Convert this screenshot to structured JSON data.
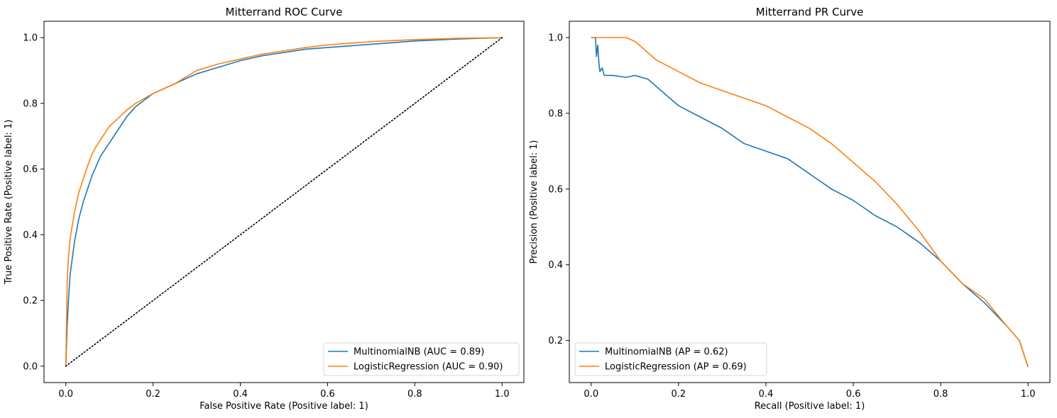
{
  "chart_data": [
    {
      "type": "line",
      "title": "Mitterrand ROC Curve",
      "xlabel": "False Positive Rate (Positive label: 1)",
      "ylabel": "True Positive Rate (Positive label: 1)",
      "xlim": [
        -0.05,
        1.05
      ],
      "ylim": [
        -0.05,
        1.05
      ],
      "xticks": [
        0.0,
        0.2,
        0.4,
        0.6,
        0.8,
        1.0
      ],
      "xtick_labels": [
        "0.0",
        "0.2",
        "0.4",
        "0.6",
        "0.8",
        "1.0"
      ],
      "yticks": [
        0.0,
        0.2,
        0.4,
        0.6,
        0.8,
        1.0
      ],
      "ytick_labels": [
        "0.0",
        "0.2",
        "0.4",
        "0.6",
        "0.8",
        "1.0"
      ],
      "legend_position": "lower-right",
      "grid": false,
      "series": [
        {
          "name": "MultinomialNB (AUC = 0.89)",
          "color": "#1f77b4",
          "x": [
            0.0,
            0.003,
            0.006,
            0.01,
            0.015,
            0.02,
            0.03,
            0.04,
            0.05,
            0.06,
            0.07,
            0.08,
            0.09,
            0.1,
            0.12,
            0.14,
            0.16,
            0.18,
            0.2,
            0.25,
            0.3,
            0.35,
            0.4,
            0.45,
            0.5,
            0.55,
            0.6,
            0.65,
            0.7,
            0.75,
            0.8,
            0.85,
            0.9,
            0.95,
            1.0
          ],
          "y": [
            0.0,
            0.12,
            0.2,
            0.28,
            0.33,
            0.38,
            0.45,
            0.5,
            0.54,
            0.58,
            0.61,
            0.64,
            0.66,
            0.68,
            0.72,
            0.76,
            0.79,
            0.81,
            0.83,
            0.86,
            0.89,
            0.91,
            0.93,
            0.945,
            0.955,
            0.965,
            0.97,
            0.975,
            0.98,
            0.985,
            0.99,
            0.993,
            0.996,
            0.998,
            1.0
          ]
        },
        {
          "name": "LogisticRegression (AUC = 0.90)",
          "color": "#ff7f0e",
          "x": [
            0.0,
            0.003,
            0.006,
            0.01,
            0.015,
            0.02,
            0.03,
            0.04,
            0.05,
            0.06,
            0.07,
            0.08,
            0.09,
            0.1,
            0.12,
            0.14,
            0.16,
            0.18,
            0.2,
            0.25,
            0.3,
            0.35,
            0.4,
            0.45,
            0.5,
            0.55,
            0.6,
            0.65,
            0.7,
            0.75,
            0.8,
            0.85,
            0.9,
            0.95,
            1.0
          ],
          "y": [
            0.0,
            0.25,
            0.33,
            0.39,
            0.43,
            0.47,
            0.53,
            0.57,
            0.61,
            0.645,
            0.67,
            0.69,
            0.71,
            0.73,
            0.755,
            0.78,
            0.8,
            0.815,
            0.83,
            0.86,
            0.9,
            0.92,
            0.935,
            0.95,
            0.96,
            0.97,
            0.978,
            0.983,
            0.988,
            0.991,
            0.994,
            0.996,
            0.998,
            0.999,
            1.0
          ]
        },
        {
          "name": "",
          "color": "#000000",
          "style": "dotted",
          "x": [
            0.0,
            1.0
          ],
          "y": [
            0.0,
            1.0
          ]
        }
      ]
    },
    {
      "type": "line",
      "title": "Mitterrand PR Curve",
      "xlabel": "Recall (Positive label: 1)",
      "ylabel": "Precision (Positive label: 1)",
      "xlim": [
        -0.05,
        1.05
      ],
      "ylim": [
        0.089,
        1.043
      ],
      "xticks": [
        0.0,
        0.2,
        0.4,
        0.6,
        0.8,
        1.0
      ],
      "xtick_labels": [
        "0.0",
        "0.2",
        "0.4",
        "0.6",
        "0.8",
        "1.0"
      ],
      "yticks": [
        0.2,
        0.4,
        0.6,
        0.8,
        1.0
      ],
      "ytick_labels": [
        "0.2",
        "0.4",
        "0.6",
        "0.8",
        "1.0"
      ],
      "legend_position": "lower-left",
      "grid": false,
      "series": [
        {
          "name": "MultinomialNB (AP = 0.62)",
          "color": "#1f77b4",
          "x": [
            0.0,
            0.01,
            0.012,
            0.015,
            0.018,
            0.02,
            0.025,
            0.03,
            0.05,
            0.08,
            0.1,
            0.13,
            0.15,
            0.2,
            0.25,
            0.3,
            0.35,
            0.4,
            0.45,
            0.5,
            0.55,
            0.6,
            0.65,
            0.7,
            0.75,
            0.8,
            0.85,
            0.9,
            0.95,
            0.98,
            1.0
          ],
          "y": [
            1.0,
            1.0,
            0.95,
            0.98,
            0.93,
            0.91,
            0.92,
            0.9,
            0.9,
            0.895,
            0.9,
            0.89,
            0.87,
            0.82,
            0.79,
            0.76,
            0.72,
            0.7,
            0.68,
            0.64,
            0.6,
            0.57,
            0.53,
            0.5,
            0.46,
            0.41,
            0.35,
            0.3,
            0.24,
            0.2,
            0.13
          ]
        },
        {
          "name": "LogisticRegression (AP = 0.69)",
          "color": "#ff7f0e",
          "x": [
            0.0,
            0.02,
            0.05,
            0.08,
            0.1,
            0.12,
            0.15,
            0.2,
            0.25,
            0.3,
            0.35,
            0.4,
            0.45,
            0.5,
            0.55,
            0.6,
            0.65,
            0.7,
            0.75,
            0.8,
            0.85,
            0.9,
            0.95,
            0.98,
            1.0
          ],
          "y": [
            1.0,
            1.0,
            1.0,
            1.0,
            0.99,
            0.97,
            0.94,
            0.91,
            0.88,
            0.86,
            0.84,
            0.82,
            0.79,
            0.76,
            0.72,
            0.67,
            0.62,
            0.56,
            0.49,
            0.41,
            0.35,
            0.31,
            0.24,
            0.2,
            0.13
          ]
        }
      ]
    }
  ]
}
